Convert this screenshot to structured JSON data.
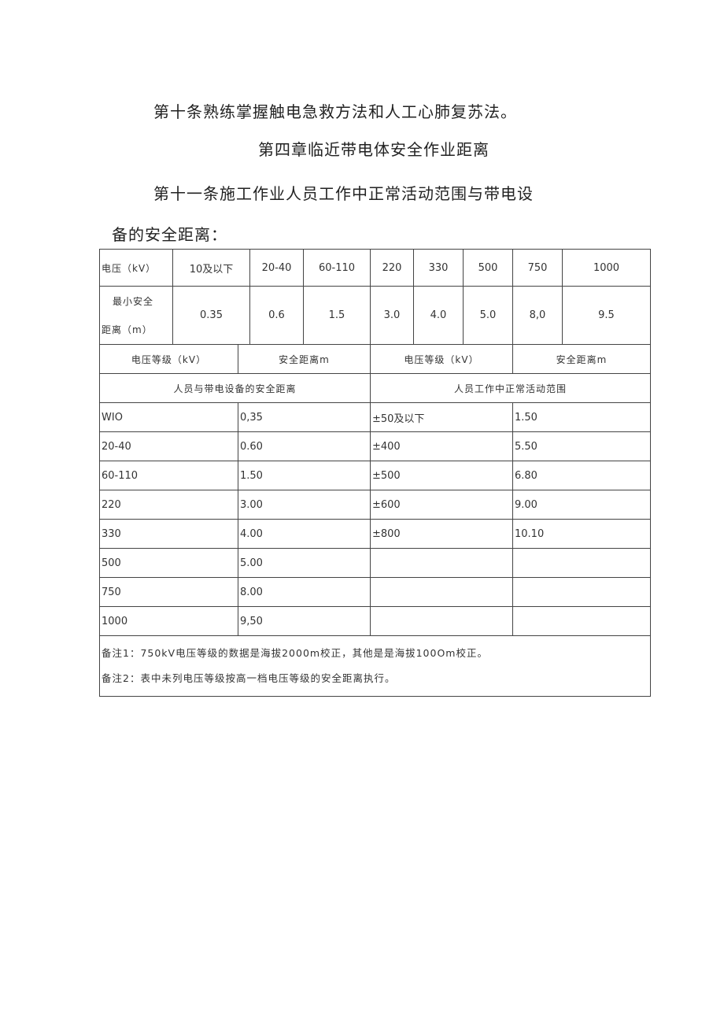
{
  "para1": "第十条熟练掌握触电急救方法和人工心肺复苏法。",
  "heading": "第四章临近带电体安全作业距离",
  "para2": "第十一条施工作业人员工作中正常活动范围与带电设",
  "para3": "备的安全距离：",
  "top_table": {
    "row1": [
      "电压（kV）",
      "10及以下",
      "20-40",
      "60-110",
      "220",
      "330",
      "500",
      "750",
      "1000"
    ],
    "row2_label_a": "最小安全",
    "row2_label_b": "距离（m）",
    "row2": [
      "0.35",
      "0.6",
      "1.5",
      "3.0",
      "4.0",
      "5.0",
      "8,0",
      "9.5"
    ]
  },
  "lower_table": {
    "headers": [
      "电压等级（kV）",
      "安全距离m",
      "电压等级（kV）",
      "安全距离m"
    ],
    "section_left": "人员与带电设备的安全距离",
    "section_right": "人员工作中正常活动范围",
    "rows": [
      [
        "WIO",
        "0,35",
        "±50及以下",
        "1.50"
      ],
      [
        "20-40",
        "0.60",
        "±400",
        "5.50"
      ],
      [
        "60-110",
        "1.50",
        "±500",
        "6.80"
      ],
      [
        "220",
        "3.00",
        "±600",
        "9.00"
      ],
      [
        "330",
        "4.00",
        "±800",
        "10.10"
      ],
      [
        "500",
        "5.00",
        "",
        ""
      ],
      [
        "750",
        "8.00",
        "",
        ""
      ],
      [
        "1000",
        "9,50",
        "",
        ""
      ]
    ],
    "note1": "备注1：750kV电压等级的数据是海拔2000m校正，其他是是海拔100Om校正。",
    "note2": "备注2：表中未列电压等级按高一档电压等级的安全距离执行。"
  }
}
